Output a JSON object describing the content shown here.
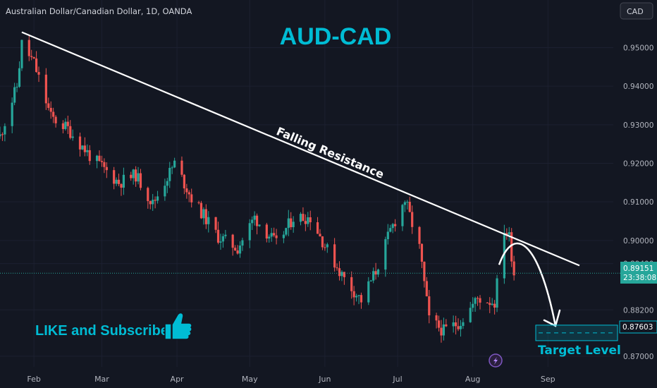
{
  "header": {
    "symbol_info": "Australian Dollar/Canadian Dollar, 1D, OANDA",
    "currency_button": "CAD"
  },
  "overlay": {
    "title": "AUD-CAD",
    "trendline_label": "Falling Resistance",
    "cta_text": "LIKE and Subscribe",
    "target_label": "Target Level"
  },
  "price_scale": {
    "last_price": "0.89151",
    "countdown": "23:38:08",
    "target_price": "0.87603",
    "ticks": [
      "0.95000",
      "0.94000",
      "0.93000",
      "0.92000",
      "0.91000",
      "0.90000",
      "0.89400",
      "0.88200",
      "0.87000"
    ]
  },
  "time_scale": {
    "ticks": [
      "Feb",
      "Mar",
      "Apr",
      "May",
      "Jun",
      "Jul",
      "Aug",
      "Sep"
    ]
  },
  "colors": {
    "background": "#131722",
    "up": "#26a69a",
    "down": "#ef5350",
    "accent": "#00bcd4",
    "line": "#ffffff"
  },
  "chart_data": {
    "type": "candlestick",
    "symbol": "Australian Dollar/Canadian Dollar",
    "interval": "1D",
    "source": "OANDA",
    "ylim": [
      0.8665,
      0.9585
    ],
    "anchors": [
      {
        "date": "2023-01-18",
        "close": 0.927
      },
      {
        "date": "2023-01-25",
        "close": 0.94
      },
      {
        "date": "2023-01-27",
        "close": 0.951
      },
      {
        "date": "2023-02-01",
        "close": 0.946
      },
      {
        "date": "2023-02-08",
        "close": 0.932
      },
      {
        "date": "2023-02-15",
        "close": 0.929
      },
      {
        "date": "2023-02-24",
        "close": 0.922
      },
      {
        "date": "2023-03-08",
        "close": 0.915
      },
      {
        "date": "2023-03-15",
        "close": 0.917
      },
      {
        "date": "2023-03-22",
        "close": 0.9095
      },
      {
        "date": "2023-03-31",
        "close": 0.92
      },
      {
        "date": "2023-04-07",
        "close": 0.911
      },
      {
        "date": "2023-04-18",
        "close": 0.901
      },
      {
        "date": "2023-04-26",
        "close": 0.898
      },
      {
        "date": "2023-05-03",
        "close": 0.906
      },
      {
        "date": "2023-05-12",
        "close": 0.899
      },
      {
        "date": "2023-05-19",
        "close": 0.906
      },
      {
        "date": "2023-05-26",
        "close": 0.906
      },
      {
        "date": "2023-06-02",
        "close": 0.8975
      },
      {
        "date": "2023-06-09",
        "close": 0.89
      },
      {
        "date": "2023-06-16",
        "close": 0.8845
      },
      {
        "date": "2023-06-22",
        "close": 0.892
      },
      {
        "date": "2023-06-28",
        "close": 0.9025
      },
      {
        "date": "2023-07-04",
        "close": 0.9105
      },
      {
        "date": "2023-07-10",
        "close": 0.898
      },
      {
        "date": "2023-07-14",
        "close": 0.8795
      },
      {
        "date": "2023-07-20",
        "close": 0.8765
      },
      {
        "date": "2023-07-27",
        "close": 0.879
      },
      {
        "date": "2023-08-03",
        "close": 0.885
      },
      {
        "date": "2023-08-10",
        "close": 0.884
      },
      {
        "date": "2023-08-14",
        "close": 0.903
      },
      {
        "date": "2023-08-16",
        "close": 0.901
      },
      {
        "date": "2023-08-18",
        "close": 0.8915
      }
    ],
    "trendline": {
      "label": "Falling Resistance",
      "from": {
        "date": "2023-01-27",
        "price": 0.954
      },
      "to": {
        "date": "2023-09-14",
        "price": 0.8935
      }
    },
    "target_level": {
      "label": "Target Level",
      "price": 0.87603
    },
    "last_price": 0.89151
  }
}
